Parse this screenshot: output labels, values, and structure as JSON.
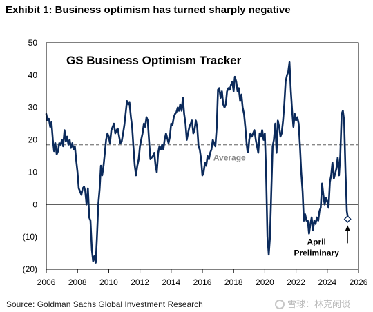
{
  "header": {
    "title": "Exhibit 1: Business optimism has turned sharply negative"
  },
  "footer": {
    "source": "Source: Goldman Sachs Global Investment Research",
    "watermark_text": "雪球：林克闲谈",
    "watermark_icon": "snowball-icon"
  },
  "chart_data": {
    "type": "line",
    "title": "GS Business Optimism Tracker",
    "xlabel": "",
    "ylabel": "",
    "xlim": [
      2006,
      2026
    ],
    "ylim": [
      -20,
      50
    ],
    "xticks": [
      2006,
      2008,
      2010,
      2012,
      2014,
      2016,
      2018,
      2020,
      2022,
      2024,
      2026
    ],
    "yticks": [
      50,
      40,
      30,
      20,
      10,
      0,
      -10,
      -20
    ],
    "ytick_labels": [
      "50",
      "40",
      "30",
      "20",
      "10",
      "0",
      "(10)",
      "(20)"
    ],
    "grid": false,
    "line_color": "#0b2a5b",
    "average": {
      "value": 18.5,
      "label": "Average",
      "color": "#888888"
    },
    "zero_line": true,
    "annotation": {
      "text_line1": "April",
      "text_line2": "Preliminary",
      "x": 2025.3,
      "y": -4.5
    },
    "series": [
      {
        "values": [
          [
            2006.0,
            28
          ],
          [
            2006.08,
            26
          ],
          [
            2006.17,
            26.5
          ],
          [
            2006.25,
            24
          ],
          [
            2006.33,
            25.5
          ],
          [
            2006.42,
            20
          ],
          [
            2006.5,
            16.5
          ],
          [
            2006.58,
            19
          ],
          [
            2006.67,
            15.5
          ],
          [
            2006.75,
            16.5
          ],
          [
            2006.83,
            19
          ],
          [
            2006.92,
            18.5
          ],
          [
            2007.0,
            20
          ],
          [
            2007.08,
            18
          ],
          [
            2007.17,
            23
          ],
          [
            2007.25,
            19.5
          ],
          [
            2007.33,
            21
          ],
          [
            2007.42,
            18.5
          ],
          [
            2007.5,
            20
          ],
          [
            2007.58,
            17.5
          ],
          [
            2007.67,
            19
          ],
          [
            2007.75,
            17
          ],
          [
            2007.83,
            18
          ],
          [
            2007.92,
            13.5
          ],
          [
            2008.0,
            10
          ],
          [
            2008.08,
            5
          ],
          [
            2008.17,
            4
          ],
          [
            2008.25,
            3
          ],
          [
            2008.33,
            5
          ],
          [
            2008.42,
            5.5
          ],
          [
            2008.5,
            4
          ],
          [
            2008.58,
            0
          ],
          [
            2008.67,
            5
          ],
          [
            2008.75,
            -4
          ],
          [
            2008.83,
            -5
          ],
          [
            2008.92,
            -14
          ],
          [
            2009.0,
            -17.5
          ],
          [
            2009.08,
            -16
          ],
          [
            2009.17,
            -18
          ],
          [
            2009.25,
            -10
          ],
          [
            2009.33,
            0
          ],
          [
            2009.42,
            5
          ],
          [
            2009.5,
            12
          ],
          [
            2009.58,
            9
          ],
          [
            2009.67,
            12
          ],
          [
            2009.75,
            16
          ],
          [
            2009.83,
            20
          ],
          [
            2009.92,
            22
          ],
          [
            2010.0,
            21
          ],
          [
            2010.08,
            19
          ],
          [
            2010.17,
            23
          ],
          [
            2010.25,
            24
          ],
          [
            2010.33,
            25
          ],
          [
            2010.42,
            22
          ],
          [
            2010.5,
            23
          ],
          [
            2010.58,
            23.5
          ],
          [
            2010.67,
            21
          ],
          [
            2010.75,
            19
          ],
          [
            2010.83,
            19.5
          ],
          [
            2010.92,
            22
          ],
          [
            2011.0,
            24.5
          ],
          [
            2011.08,
            28
          ],
          [
            2011.17,
            32
          ],
          [
            2011.25,
            31
          ],
          [
            2011.33,
            31.5
          ],
          [
            2011.42,
            27
          ],
          [
            2011.5,
            24
          ],
          [
            2011.58,
            18
          ],
          [
            2011.67,
            12
          ],
          [
            2011.75,
            9
          ],
          [
            2011.83,
            12
          ],
          [
            2011.92,
            14
          ],
          [
            2012.0,
            18
          ],
          [
            2012.08,
            20
          ],
          [
            2012.17,
            22
          ],
          [
            2012.25,
            25
          ],
          [
            2012.33,
            24
          ],
          [
            2012.42,
            27
          ],
          [
            2012.5,
            26
          ],
          [
            2012.58,
            20
          ],
          [
            2012.67,
            14
          ],
          [
            2012.75,
            14.5
          ],
          [
            2012.83,
            15
          ],
          [
            2012.92,
            16
          ],
          [
            2013.0,
            12
          ],
          [
            2013.08,
            10
          ],
          [
            2013.17,
            16
          ],
          [
            2013.25,
            18
          ],
          [
            2013.33,
            17
          ],
          [
            2013.42,
            18.5
          ],
          [
            2013.5,
            17
          ],
          [
            2013.58,
            20
          ],
          [
            2013.67,
            22
          ],
          [
            2013.75,
            20.5
          ],
          [
            2013.83,
            19
          ],
          [
            2013.92,
            21
          ],
          [
            2014.0,
            25
          ],
          [
            2014.08,
            24.5
          ],
          [
            2014.17,
            27
          ],
          [
            2014.25,
            28
          ],
          [
            2014.33,
            28.5
          ],
          [
            2014.42,
            30
          ],
          [
            2014.5,
            29
          ],
          [
            2014.58,
            31
          ],
          [
            2014.67,
            29
          ],
          [
            2014.75,
            33
          ],
          [
            2014.83,
            28
          ],
          [
            2014.92,
            25
          ],
          [
            2015.0,
            20
          ],
          [
            2015.08,
            22
          ],
          [
            2015.17,
            24
          ],
          [
            2015.25,
            25
          ],
          [
            2015.33,
            26
          ],
          [
            2015.42,
            22
          ],
          [
            2015.5,
            23
          ],
          [
            2015.58,
            26
          ],
          [
            2015.67,
            24
          ],
          [
            2015.75,
            18
          ],
          [
            2015.83,
            17
          ],
          [
            2015.92,
            14
          ],
          [
            2016.0,
            9
          ],
          [
            2016.08,
            10
          ],
          [
            2016.17,
            13
          ],
          [
            2016.25,
            12
          ],
          [
            2016.33,
            15
          ],
          [
            2016.42,
            14
          ],
          [
            2016.5,
            16
          ],
          [
            2016.58,
            17
          ],
          [
            2016.67,
            20
          ],
          [
            2016.75,
            19
          ],
          [
            2016.83,
            18
          ],
          [
            2016.92,
            24
          ],
          [
            2017.0,
            35.5
          ],
          [
            2017.08,
            36
          ],
          [
            2017.17,
            33
          ],
          [
            2017.25,
            35
          ],
          [
            2017.33,
            31
          ],
          [
            2017.42,
            30
          ],
          [
            2017.5,
            31
          ],
          [
            2017.58,
            35
          ],
          [
            2017.67,
            36
          ],
          [
            2017.75,
            35.5
          ],
          [
            2017.83,
            37
          ],
          [
            2017.92,
            38
          ],
          [
            2018.0,
            35
          ],
          [
            2018.08,
            39.5
          ],
          [
            2018.17,
            38
          ],
          [
            2018.25,
            35
          ],
          [
            2018.33,
            36
          ],
          [
            2018.42,
            32
          ],
          [
            2018.5,
            34
          ],
          [
            2018.58,
            30
          ],
          [
            2018.67,
            28
          ],
          [
            2018.75,
            24
          ],
          [
            2018.83,
            19
          ],
          [
            2018.92,
            15
          ],
          [
            2019.0,
            20
          ],
          [
            2019.08,
            22
          ],
          [
            2019.17,
            21
          ],
          [
            2019.25,
            22
          ],
          [
            2019.33,
            23
          ],
          [
            2019.42,
            20
          ],
          [
            2019.5,
            18
          ],
          [
            2019.58,
            16
          ],
          [
            2019.67,
            22
          ],
          [
            2019.75,
            21
          ],
          [
            2019.83,
            23
          ],
          [
            2019.92,
            20
          ],
          [
            2020.0,
            22
          ],
          [
            2020.08,
            10
          ],
          [
            2020.17,
            -10
          ],
          [
            2020.25,
            -15.5
          ],
          [
            2020.33,
            -10
          ],
          [
            2020.42,
            5
          ],
          [
            2020.5,
            18
          ],
          [
            2020.58,
            20
          ],
          [
            2020.67,
            25
          ],
          [
            2020.75,
            16
          ],
          [
            2020.83,
            26
          ],
          [
            2020.92,
            24
          ],
          [
            2021.0,
            21
          ],
          [
            2021.08,
            22
          ],
          [
            2021.17,
            26
          ],
          [
            2021.25,
            31
          ],
          [
            2021.33,
            38
          ],
          [
            2021.42,
            40
          ],
          [
            2021.5,
            41
          ],
          [
            2021.58,
            44
          ],
          [
            2021.67,
            35
          ],
          [
            2021.75,
            29
          ],
          [
            2021.83,
            24
          ],
          [
            2021.92,
            28
          ],
          [
            2022.0,
            26
          ],
          [
            2022.08,
            27
          ],
          [
            2022.17,
            25
          ],
          [
            2022.25,
            18
          ],
          [
            2022.33,
            10
          ],
          [
            2022.42,
            4
          ],
          [
            2022.5,
            -5
          ],
          [
            2022.58,
            -3
          ],
          [
            2022.67,
            -5
          ],
          [
            2022.75,
            -5
          ],
          [
            2022.83,
            -9
          ],
          [
            2022.92,
            -6
          ],
          [
            2023.0,
            -4
          ],
          [
            2023.08,
            -8
          ],
          [
            2023.17,
            -5
          ],
          [
            2023.25,
            -6
          ],
          [
            2023.33,
            -4
          ],
          [
            2023.42,
            -5
          ],
          [
            2023.5,
            -2
          ],
          [
            2023.58,
            -1
          ],
          [
            2023.67,
            6.5
          ],
          [
            2023.75,
            3
          ],
          [
            2023.83,
            0
          ],
          [
            2023.92,
            2
          ],
          [
            2024.0,
            1
          ],
          [
            2024.08,
            -1
          ],
          [
            2024.17,
            7
          ],
          [
            2024.25,
            9
          ],
          [
            2024.33,
            13
          ],
          [
            2024.42,
            8
          ],
          [
            2024.5,
            9.5
          ],
          [
            2024.58,
            11
          ],
          [
            2024.67,
            14.5
          ],
          [
            2024.75,
            9
          ],
          [
            2024.83,
            15
          ],
          [
            2024.92,
            28
          ],
          [
            2025.0,
            29
          ],
          [
            2025.08,
            26
          ],
          [
            2025.17,
            10
          ],
          [
            2025.25,
            -2
          ],
          [
            2025.33,
            -4.5
          ]
        ]
      }
    ]
  }
}
